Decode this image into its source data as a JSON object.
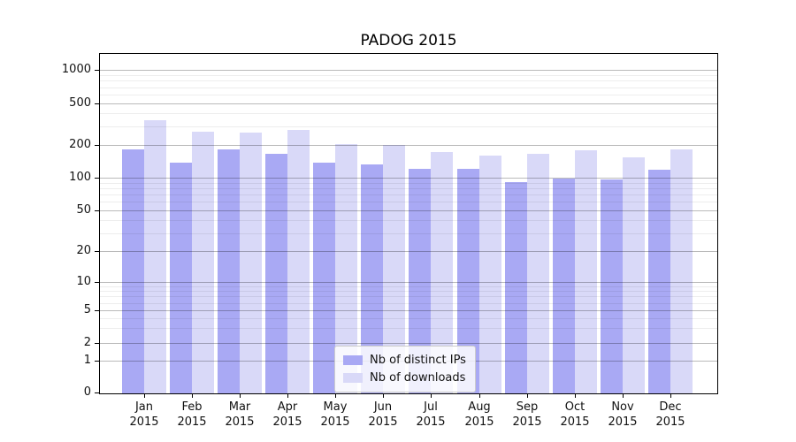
{
  "chart_data": {
    "type": "bar",
    "title": "PADOG 2015",
    "categories": [
      "Jan 2015",
      "Feb 2015",
      "Mar 2015",
      "Apr 2015",
      "May 2015",
      "Jun 2015",
      "Jul 2015",
      "Aug 2015",
      "Sep 2015",
      "Oct 2015",
      "Nov 2015",
      "Dec 2015"
    ],
    "series": [
      {
        "name": "Nb of distinct IPs",
        "color": "#a9a9f4",
        "values": [
          185,
          140,
          185,
          170,
          140,
          135,
          123,
          124,
          93,
          100,
          98,
          120
        ]
      },
      {
        "name": "Nb of downloads",
        "color": "#d9d9f8",
        "values": [
          355,
          272,
          268,
          284,
          208,
          205,
          176,
          163,
          170,
          182,
          157,
          186
        ]
      }
    ],
    "xlabel": "",
    "ylabel": "",
    "yscale": "symlog",
    "yticks": [
      0,
      1,
      2,
      5,
      10,
      20,
      50,
      100,
      200,
      500,
      1000
    ],
    "ytick_labels": [
      "0",
      "1",
      "2",
      "5",
      "10",
      "20",
      "50",
      "100",
      "200",
      "500",
      "1000"
    ],
    "ylim": [
      0,
      1800
    ],
    "grid": "horizontal major and minor, drawn over bars",
    "legend_position": "lower center inside plot"
  },
  "legend": {
    "items": [
      "Nb of distinct IPs",
      "Nb of downloads"
    ]
  },
  "colors": {
    "ips_bar": "#a9a9f4",
    "downloads_bar": "#d9d9f8",
    "grid_major": "#bdbdbd",
    "grid_minor": "#ededed",
    "axis": "#000000",
    "text": "#111111",
    "background": "#ffffff"
  }
}
